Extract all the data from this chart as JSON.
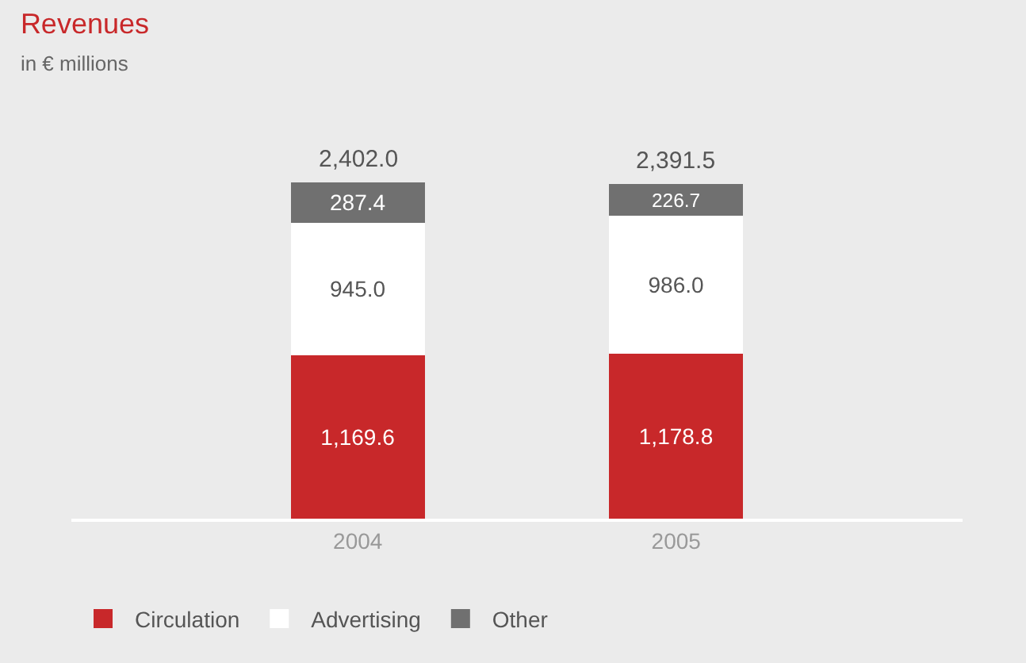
{
  "chart_data": {
    "type": "bar",
    "title": "Revenues",
    "subtitle": "in € millions",
    "categories": [
      "2004",
      "2005"
    ],
    "stacked": true,
    "legend": "bottom left",
    "grid": false,
    "series": [
      {
        "name": "Circulation",
        "color": "#c8282a",
        "values": [
          1169.6,
          1178.8
        ],
        "value_labels": [
          "1,169.6",
          "1,178.8"
        ]
      },
      {
        "name": "Advertising",
        "color": "#ffffff",
        "values": [
          945.0,
          986.0
        ],
        "value_labels": [
          "945.0",
          "986.0"
        ]
      },
      {
        "name": "Other",
        "color": "#707070",
        "values": [
          287.4,
          226.7
        ],
        "value_labels": [
          "287.4",
          "226.7"
        ]
      }
    ],
    "totals": [
      "2,402.0",
      "2,391.5"
    ]
  }
}
